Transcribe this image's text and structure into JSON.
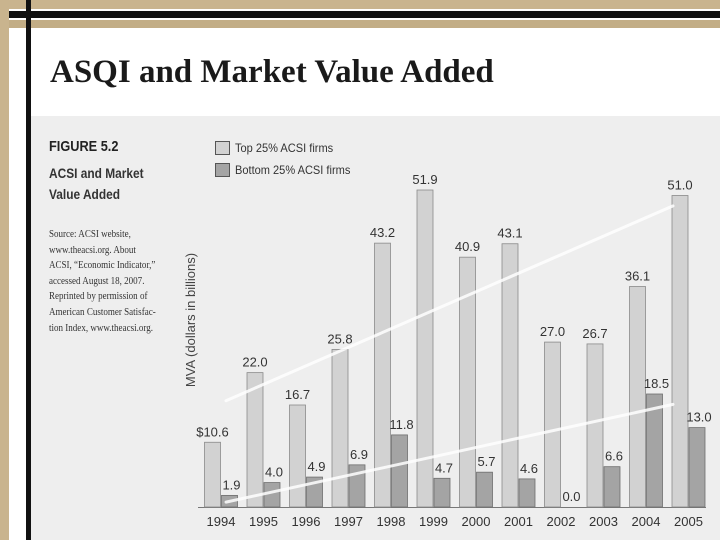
{
  "slide": {
    "title": "ASQI and Market Value Added"
  },
  "figure": {
    "label": "FIGURE 5.2",
    "title_lines": [
      "ACSI and Market",
      "Value Added"
    ],
    "source_lines": [
      "Source: ACSI website,",
      "www.theacsi.org. About",
      "ACSI, “Economic Indicator,”",
      "accessed August 18, 2007.",
      "Reprinted by permission of",
      "American Customer Satisfac-",
      "tion Index, www.theacsi.org."
    ]
  },
  "colors": {
    "top_series": "#d2d2d2",
    "bottom_series": "#a4a4a4",
    "trend": "#ffffff",
    "background": "#eeeeee"
  },
  "chart_data": {
    "type": "bar",
    "title": "ACSI and Market Value Added",
    "xlabel": "",
    "ylabel": "MVA (dollars in billions)",
    "ylim": [
      0,
      55
    ],
    "categories": [
      "1994",
      "1995",
      "1996",
      "1997",
      "1998",
      "1999",
      "2000",
      "2001",
      "2002",
      "2003",
      "2004",
      "2005"
    ],
    "series": [
      {
        "name": "Top 25% ACSI firms",
        "values": [
          10.6,
          22.0,
          16.7,
          25.8,
          43.2,
          51.9,
          40.9,
          43.1,
          27.0,
          26.7,
          36.1,
          51.0
        ],
        "labels": [
          "$10.6",
          "22.0",
          "16.7",
          "25.8",
          "43.2",
          "51.9",
          "40.9",
          "43.1",
          "27.0",
          "26.7",
          "36.1",
          "51.0"
        ]
      },
      {
        "name": "Bottom 25% ACSI firms",
        "values": [
          1.9,
          4.0,
          4.9,
          6.9,
          11.8,
          4.7,
          5.7,
          4.6,
          0.0,
          6.6,
          18.5,
          13.0
        ],
        "labels": [
          "1.9",
          "4.0",
          "4.9",
          "6.9",
          "11.8",
          "4.7",
          "5.7",
          "4.6",
          "0.0",
          "6.6",
          "18.5",
          "13.0"
        ]
      }
    ],
    "trend_lines": [
      {
        "series": "Top 25% ACSI firms",
        "from_value": 17.4,
        "to_value": 49.3
      },
      {
        "series": "Bottom 25% ACSI firms",
        "from_value": 0.8,
        "to_value": 16.8
      }
    ],
    "legend_position": "top-left",
    "grid": false
  }
}
